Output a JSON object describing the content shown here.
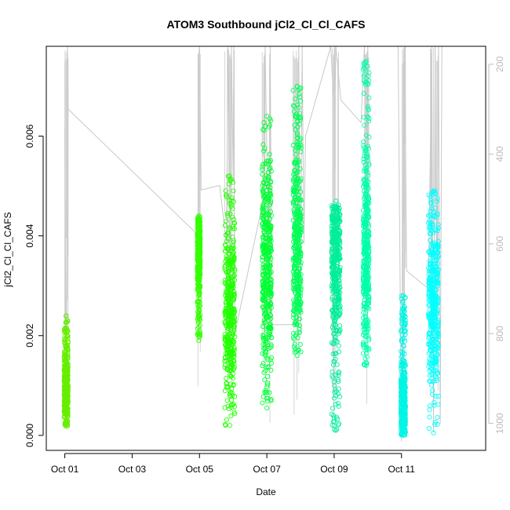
{
  "chart_data": {
    "type": "scatter",
    "title": "ATOM3 Southbound jCl2_Cl_Cl_CAFS",
    "xlabel": "Date",
    "ylabel": "jCl2_Cl_Cl_CAFS",
    "x_unit": "days since Oct 01",
    "xlim": [
      -0.55,
      12.5
    ],
    "ylim": [
      -0.0003,
      0.0078
    ],
    "y2lim": [
      1060,
      160
    ],
    "x_ticks": [
      {
        "value": 0,
        "label": "Oct 01"
      },
      {
        "value": 2,
        "label": "Oct 03"
      },
      {
        "value": 4,
        "label": "Oct 05"
      },
      {
        "value": 6,
        "label": "Oct 07"
      },
      {
        "value": 8,
        "label": "Oct 09"
      },
      {
        "value": 10,
        "label": "Oct 11"
      }
    ],
    "y_ticks": [
      {
        "value": 0.0,
        "label": "0.000"
      },
      {
        "value": 0.002,
        "label": "0.002"
      },
      {
        "value": 0.004,
        "label": "0.004"
      },
      {
        "value": 0.006,
        "label": "0.006"
      }
    ],
    "y2_ticks": [
      {
        "value": 200,
        "label": "200"
      },
      {
        "value": 400,
        "label": "400"
      },
      {
        "value": 600,
        "label": "600"
      },
      {
        "value": 800,
        "label": "800"
      },
      {
        "value": 1000,
        "label": "1000"
      }
    ],
    "clusters": [
      {
        "x": 0.04,
        "xw": 0.12,
        "ymin": 0.00018,
        "ymax": 0.0024,
        "ycenter": 0.0009,
        "color": "#66ee00"
      },
      {
        "x": 3.98,
        "xw": 0.09,
        "ymin": 0.0019,
        "ymax": 0.0044,
        "ycenter": 0.0037,
        "color": "#33ff00"
      },
      {
        "x": 4.9,
        "xw": 0.3,
        "ymin": 0.0002,
        "ymax": 0.0052,
        "ycenter": 0.0026,
        "color": "#22ff00"
      },
      {
        "x": 6.0,
        "xw": 0.28,
        "ymin": 0.00055,
        "ymax": 0.0064,
        "ycenter": 0.0036,
        "color": "#00ff33"
      },
      {
        "x": 6.9,
        "xw": 0.24,
        "ymin": 0.0016,
        "ymax": 0.007,
        "ycenter": 0.0038,
        "color": "#00ff55"
      },
      {
        "x": 8.05,
        "xw": 0.26,
        "ymin": 0.0001,
        "ymax": 0.0047,
        "ycenter": 0.0036,
        "color": "#00ee99"
      },
      {
        "x": 8.95,
        "xw": 0.18,
        "ymin": 0.0014,
        "ymax": 0.0075,
        "ycenter": 0.0036,
        "color": "#00ffaa"
      },
      {
        "x": 10.05,
        "xw": 0.14,
        "ymin": 0.0,
        "ymax": 0.0028,
        "ycenter": 0.0006,
        "color": "#00f5e5"
      },
      {
        "x": 10.95,
        "xw": 0.3,
        "ymin": 5e-05,
        "ymax": 0.0049,
        "ycenter": 0.0028,
        "color": "#00ffff"
      }
    ],
    "altitude_path": [
      [
        0.0,
        340
      ],
      [
        0.05,
        1000
      ],
      [
        0.08,
        160
      ],
      [
        0.1,
        300
      ],
      [
        3.95,
        580
      ],
      [
        4.0,
        160
      ],
      [
        4.05,
        480
      ],
      [
        4.6,
        470
      ],
      [
        4.8,
        600
      ],
      [
        4.85,
        160
      ],
      [
        4.9,
        700
      ],
      [
        4.95,
        160
      ],
      [
        5.0,
        460
      ],
      [
        5.02,
        160
      ],
      [
        5.05,
        800
      ],
      [
        5.9,
        500
      ],
      [
        5.95,
        160
      ],
      [
        6.05,
        620
      ],
      [
        6.1,
        160
      ],
      [
        6.15,
        780
      ],
      [
        6.9,
        780
      ],
      [
        6.95,
        160
      ],
      [
        7.0,
        800
      ],
      [
        7.05,
        160
      ],
      [
        7.1,
        600
      ],
      [
        7.15,
        360
      ],
      [
        7.9,
        160
      ],
      [
        8.0,
        310
      ],
      [
        8.05,
        160
      ],
      [
        8.2,
        280
      ],
      [
        8.8,
        330
      ],
      [
        8.9,
        160
      ],
      [
        8.95,
        700
      ],
      [
        9.0,
        160
      ],
      [
        9.9,
        160
      ],
      [
        10.0,
        1040
      ],
      [
        10.1,
        160
      ],
      [
        10.15,
        660
      ],
      [
        10.8,
        700
      ],
      [
        10.9,
        160
      ],
      [
        10.95,
        1020
      ],
      [
        11.0,
        160
      ],
      [
        11.05,
        820
      ],
      [
        11.1,
        160
      ],
      [
        11.15,
        1000
      ],
      [
        11.2,
        160
      ]
    ]
  }
}
